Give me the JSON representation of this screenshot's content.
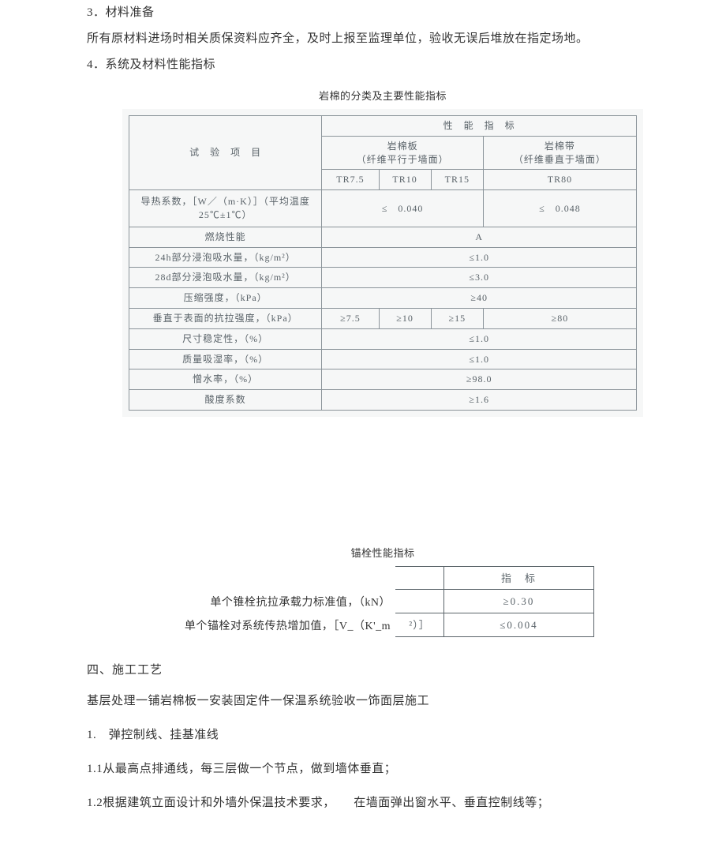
{
  "intro": {
    "p1": "3．材料准备",
    "p2": "所有原材料进场时相关质保资料应齐全，及时上报至监理单位，验收无误后堆放在指定场地。",
    "p3": "4．系统及材料性能指标"
  },
  "table1": {
    "caption": "岩棉的分类及主要性能指标",
    "bg_color": "#f6f7f7",
    "border_color": "#8b949a",
    "text_color": "#596268",
    "header": {
      "test_item": "试　验　项　目",
      "perf_index": "性　能　指　标",
      "col_a_title": "岩棉板",
      "col_a_sub": "（纤维平行于墙面）",
      "col_b_title": "岩棉带",
      "col_b_sub": "（纤维垂直于墙面）",
      "sub_a": [
        "TR7.5",
        "TR10",
        "TR15"
      ],
      "sub_b": "TR80"
    },
    "rows": [
      {
        "name": "导热系数，［W／（m·K）］（平均温度25℃±1℃）",
        "a": "≤　0.040",
        "b": "≤　0.048",
        "split": true,
        "tall": true
      },
      {
        "name": "燃烧性能",
        "all": "A"
      },
      {
        "name": "24h部分浸泡吸水量，（kg/m²）",
        "all": "≤1.0"
      },
      {
        "name": "28d部分浸泡吸水量，（kg/m²）",
        "all": "≤3.0"
      },
      {
        "name": "压缩强度，（kPa）",
        "all": "≥40"
      },
      {
        "name": "垂直于表面的抗拉强度，（kPa）",
        "a3": [
          "≥7.5",
          "≥10",
          "≥15"
        ],
        "b": "≥80"
      },
      {
        "name": "尺寸稳定性，（%）",
        "all": "≤1.0"
      },
      {
        "name": "质量吸湿率，（%）",
        "all": "≤1.0"
      },
      {
        "name": "憎水率，（%）",
        "all": "≥98.0"
      },
      {
        "name": "酸度系数",
        "all": "≥1.6"
      }
    ]
  },
  "table2": {
    "caption": "锚栓性能指标",
    "header_val": "指　标",
    "rows": [
      {
        "label": "单个锥栓抗拉承载力标准值，（kN）",
        "mid": "",
        "val": "≥0.30"
      },
      {
        "label": "单个锚栓对系统传热增加值，［V_（K'_m",
        "mid": "²）］",
        "val": "≤0.004"
      }
    ],
    "border_color": "#5b646a",
    "text_color": "#5b646a"
  },
  "body": {
    "h1": "四、施工工艺",
    "p1": "基层处理一铺岩棉板一安装固定件一保温系统验收一饰面层施工",
    "p2": "1.　弹控制线、挂基准线",
    "p3": "1.1从最高点排通线，每三层做一个节点，做到墙体垂直；",
    "p4": "1.2根据建筑立面设计和外墙外保温技术要求，　　在墙面弹出窗水平、垂直控制线等；"
  }
}
